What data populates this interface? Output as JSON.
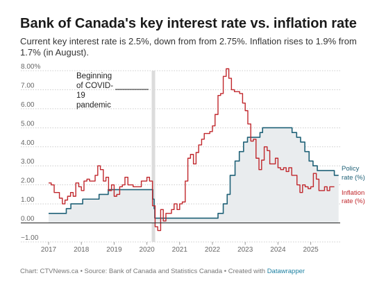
{
  "title": "Bank of Canada's key interest rate vs. inflation rate",
  "subtitle": "Current key interest rate is 2.5%, down from from 2.75%. Inflation rises to 1.9% from 1.7% (in August).",
  "footer": {
    "text": "Chart: CTVNews.ca • Source: Bank of Canada and Statistics Canada • Created with ",
    "link": "Datawrapper"
  },
  "colors": {
    "policy": "#1f6177",
    "inflation": "#c0262b",
    "fill": "#e9ecee",
    "grid": "#cccccc",
    "highlight": "#dcdcdc"
  },
  "chart_data": {
    "type": "line",
    "title": "Bank of Canada's key interest rate vs. inflation rate",
    "xlim": [
      2017.0,
      2025.85
    ],
    "ylim": [
      -1.0,
      8.0
    ],
    "x_ticks": [
      "2017",
      "2018",
      "2019",
      "2020",
      "2021",
      "2022",
      "2023",
      "2024",
      "2025"
    ],
    "y_ticks": [
      "8.00%",
      "7.00",
      "6.00",
      "5.00",
      "4.00",
      "3.00",
      "2.00",
      "1.00",
      "0.00",
      "−1.00"
    ],
    "y_tick_values": [
      8,
      7,
      6,
      5,
      4,
      3,
      2,
      1,
      0,
      -1
    ],
    "annotation": {
      "lines": [
        "Beginning",
        "of COVID-",
        "19",
        "pandemic"
      ],
      "x": 2020.2
    },
    "series": [
      {
        "name": "Policy rate (%)",
        "label_lines": [
          "Policy",
          "rate (%)"
        ],
        "step": true,
        "area": true,
        "points": [
          [
            2017.0,
            0.5
          ],
          [
            2017.54,
            0.75
          ],
          [
            2017.68,
            1.0
          ],
          [
            2018.04,
            1.25
          ],
          [
            2018.54,
            1.5
          ],
          [
            2018.82,
            1.75
          ],
          [
            2020.18,
            1.25
          ],
          [
            2020.22,
            0.75
          ],
          [
            2020.24,
            0.25
          ],
          [
            2022.17,
            0.5
          ],
          [
            2022.33,
            1.0
          ],
          [
            2022.45,
            1.5
          ],
          [
            2022.54,
            2.5
          ],
          [
            2022.69,
            3.25
          ],
          [
            2022.82,
            3.75
          ],
          [
            2022.95,
            4.25
          ],
          [
            2023.07,
            4.5
          ],
          [
            2023.45,
            4.75
          ],
          [
            2023.53,
            5.0
          ],
          [
            2024.43,
            4.75
          ],
          [
            2024.57,
            4.5
          ],
          [
            2024.69,
            4.25
          ],
          [
            2024.82,
            3.75
          ],
          [
            2024.95,
            3.25
          ],
          [
            2025.07,
            3.0
          ],
          [
            2025.2,
            2.75
          ],
          [
            2025.72,
            2.5
          ],
          [
            2025.85,
            2.5
          ]
        ]
      },
      {
        "name": "Inflation rate (%)",
        "label_lines": [
          "Inflation",
          "rate (%)"
        ],
        "step": true,
        "area": false,
        "points": [
          [
            2017.0,
            2.1
          ],
          [
            2017.08,
            2.0
          ],
          [
            2017.17,
            1.6
          ],
          [
            2017.25,
            1.6
          ],
          [
            2017.33,
            1.3
          ],
          [
            2017.42,
            1.0
          ],
          [
            2017.5,
            1.2
          ],
          [
            2017.58,
            1.4
          ],
          [
            2017.67,
            1.6
          ],
          [
            2017.75,
            1.4
          ],
          [
            2017.83,
            2.1
          ],
          [
            2017.92,
            1.9
          ],
          [
            2018.0,
            1.7
          ],
          [
            2018.08,
            2.2
          ],
          [
            2018.17,
            2.3
          ],
          [
            2018.25,
            2.2
          ],
          [
            2018.33,
            2.2
          ],
          [
            2018.42,
            2.5
          ],
          [
            2018.5,
            3.0
          ],
          [
            2018.58,
            2.8
          ],
          [
            2018.67,
            2.2
          ],
          [
            2018.75,
            2.4
          ],
          [
            2018.83,
            1.7
          ],
          [
            2018.92,
            2.0
          ],
          [
            2019.0,
            1.4
          ],
          [
            2019.08,
            1.5
          ],
          [
            2019.17,
            1.9
          ],
          [
            2019.25,
            2.0
          ],
          [
            2019.33,
            2.4
          ],
          [
            2019.42,
            2.0
          ],
          [
            2019.5,
            2.0
          ],
          [
            2019.58,
            1.9
          ],
          [
            2019.67,
            1.9
          ],
          [
            2019.75,
            1.9
          ],
          [
            2019.83,
            2.2
          ],
          [
            2019.92,
            2.2
          ],
          [
            2020.0,
            2.4
          ],
          [
            2020.08,
            2.2
          ],
          [
            2020.17,
            0.9
          ],
          [
            2020.25,
            -0.2
          ],
          [
            2020.33,
            -0.4
          ],
          [
            2020.42,
            0.7
          ],
          [
            2020.5,
            0.1
          ],
          [
            2020.58,
            0.5
          ],
          [
            2020.67,
            0.5
          ],
          [
            2020.75,
            0.7
          ],
          [
            2020.83,
            1.0
          ],
          [
            2020.92,
            0.7
          ],
          [
            2021.0,
            1.0
          ],
          [
            2021.08,
            1.1
          ],
          [
            2021.17,
            2.2
          ],
          [
            2021.25,
            3.4
          ],
          [
            2021.33,
            3.6
          ],
          [
            2021.42,
            3.1
          ],
          [
            2021.5,
            3.7
          ],
          [
            2021.58,
            4.1
          ],
          [
            2021.67,
            4.4
          ],
          [
            2021.75,
            4.7
          ],
          [
            2021.83,
            4.7
          ],
          [
            2021.92,
            4.8
          ],
          [
            2022.0,
            5.1
          ],
          [
            2022.08,
            5.7
          ],
          [
            2022.17,
            6.7
          ],
          [
            2022.25,
            6.8
          ],
          [
            2022.33,
            7.7
          ],
          [
            2022.42,
            8.1
          ],
          [
            2022.5,
            7.6
          ],
          [
            2022.58,
            7.0
          ],
          [
            2022.67,
            6.9
          ],
          [
            2022.75,
            6.9
          ],
          [
            2022.83,
            6.8
          ],
          [
            2022.92,
            6.3
          ],
          [
            2023.0,
            5.9
          ],
          [
            2023.08,
            5.2
          ],
          [
            2023.17,
            4.3
          ],
          [
            2023.25,
            4.4
          ],
          [
            2023.33,
            3.4
          ],
          [
            2023.42,
            2.8
          ],
          [
            2023.5,
            3.3
          ],
          [
            2023.58,
            4.0
          ],
          [
            2023.67,
            3.8
          ],
          [
            2023.75,
            3.1
          ],
          [
            2023.83,
            3.1
          ],
          [
            2023.92,
            3.4
          ],
          [
            2024.0,
            2.9
          ],
          [
            2024.08,
            2.8
          ],
          [
            2024.17,
            2.9
          ],
          [
            2024.25,
            2.7
          ],
          [
            2024.33,
            2.9
          ],
          [
            2024.42,
            2.5
          ],
          [
            2024.5,
            2.5
          ],
          [
            2024.58,
            2.0
          ],
          [
            2024.67,
            1.6
          ],
          [
            2024.75,
            2.0
          ],
          [
            2024.83,
            1.9
          ],
          [
            2024.92,
            1.8
          ],
          [
            2025.0,
            1.9
          ],
          [
            2025.08,
            2.6
          ],
          [
            2025.17,
            2.3
          ],
          [
            2025.25,
            1.7
          ],
          [
            2025.33,
            1.7
          ],
          [
            2025.42,
            1.9
          ],
          [
            2025.5,
            1.7
          ],
          [
            2025.58,
            1.9
          ],
          [
            2025.67,
            1.9
          ]
        ]
      }
    ]
  }
}
